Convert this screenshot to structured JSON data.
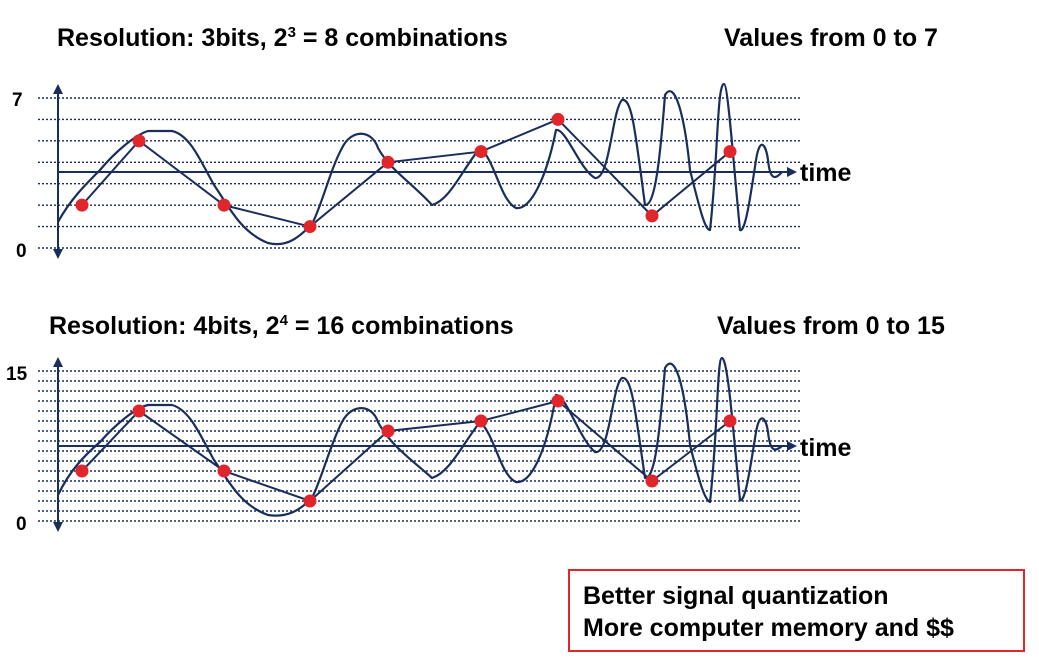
{
  "panel1": {
    "title_prefix": "Resolution: 3bits, 2",
    "title_exp": "3",
    "title_suffix": " = 8 combinations",
    "range_text": "Values from 0 to 7",
    "y_max_label": "7",
    "y_min_label": "0",
    "time_label": "time",
    "levels": 8,
    "samples": [
      2,
      5,
      2,
      1,
      4,
      4.5,
      6,
      1.5,
      4.5
    ]
  },
  "panel2": {
    "title_prefix": "Resolution: 4bits, 2",
    "title_exp": "4",
    "title_suffix": " = 16 combinations",
    "range_text": "Values from 0 to 15",
    "y_max_label": "15",
    "y_min_label": "0",
    "time_label": "time",
    "levels": 16,
    "samples": [
      5,
      11,
      5,
      2,
      9,
      10,
      12,
      4,
      10
    ]
  },
  "note": {
    "line1": "Better signal quantization",
    "line2": "More computer memory and $$"
  },
  "colors": {
    "signal": "#1a2e5c",
    "sample_point": "#e0262b",
    "grid": "#1a2e5c",
    "note_border": "#e0262b"
  }
}
